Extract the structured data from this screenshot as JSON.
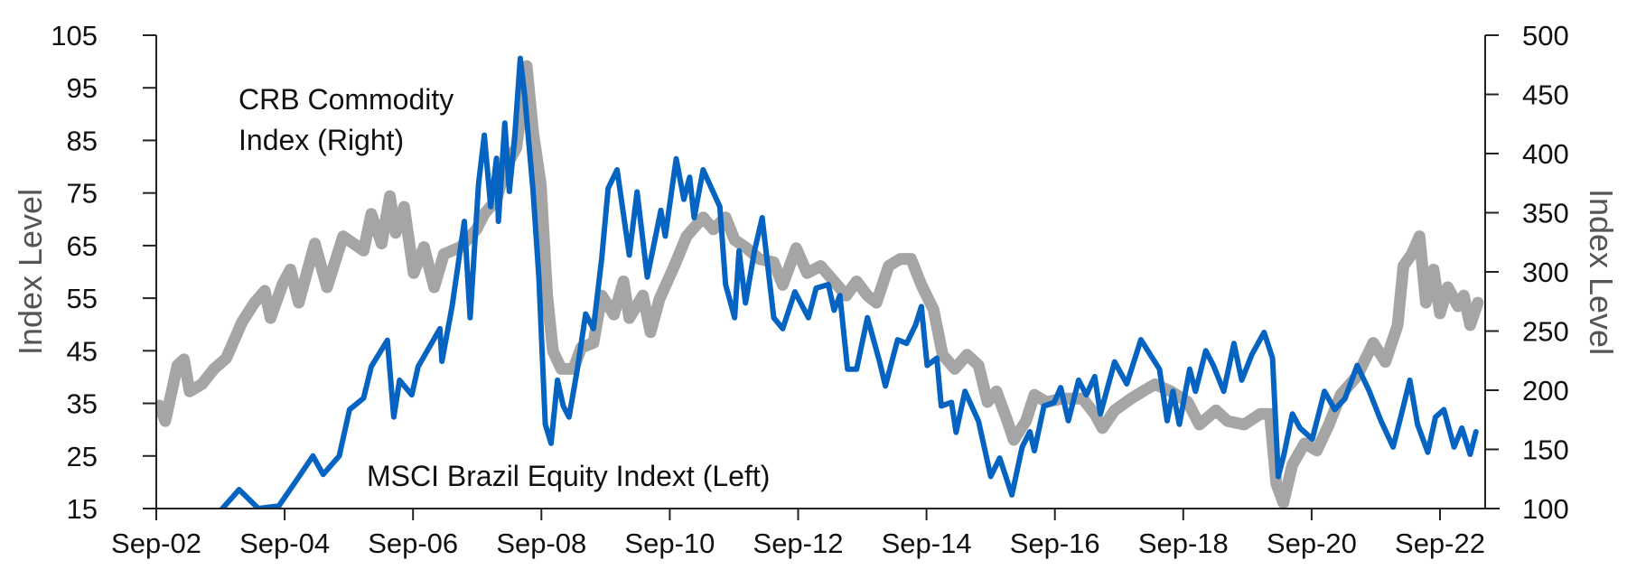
{
  "chart_data": {
    "type": "line",
    "title": "",
    "x_unit": "decimal year",
    "xlim": [
      2002.67,
      2023.6
    ],
    "x_ticks": [
      {
        "year": 2002.67,
        "label": "Sep-02"
      },
      {
        "year": 2004.67,
        "label": "Sep-04"
      },
      {
        "year": 2006.67,
        "label": "Sep-06"
      },
      {
        "year": 2008.67,
        "label": "Sep-08"
      },
      {
        "year": 2010.67,
        "label": "Sep-10"
      },
      {
        "year": 2012.67,
        "label": "Sep-12"
      },
      {
        "year": 2014.67,
        "label": "Sep-14"
      },
      {
        "year": 2016.67,
        "label": "Sep-16"
      },
      {
        "year": 2018.67,
        "label": "Sep-18"
      },
      {
        "year": 2020.67,
        "label": "Sep-20"
      },
      {
        "year": 2022.67,
        "label": "Sep-22"
      }
    ],
    "y_left": {
      "label": "Index Level",
      "ylim": [
        15,
        105
      ],
      "ticks": [
        15,
        25,
        35,
        45,
        55,
        65,
        75,
        85,
        95,
        105
      ]
    },
    "y_right": {
      "label": "Index Level",
      "ylim": [
        100,
        500
      ],
      "ticks": [
        100,
        150,
        200,
        250,
        300,
        350,
        400,
        450,
        500
      ]
    },
    "grid": false,
    "annotations": {
      "crb_line1": "CRB Commodity",
      "crb_line2": "Index (Right)",
      "msci": "MSCI Brazil Equity Indext (Left)"
    },
    "series": [
      {
        "name": "CRB Commodity Index (Right)",
        "axis": "right",
        "color": "#A5A5A5",
        "points": [
          [
            2002.72,
            187
          ],
          [
            2002.81,
            174
          ],
          [
            2003.0,
            221
          ],
          [
            2003.1,
            226
          ],
          [
            2003.19,
            199
          ],
          [
            2003.38,
            205
          ],
          [
            2003.57,
            218
          ],
          [
            2003.76,
            227
          ],
          [
            2004.01,
            258
          ],
          [
            2004.2,
            274
          ],
          [
            2004.36,
            284
          ],
          [
            2004.45,
            261
          ],
          [
            2004.64,
            290
          ],
          [
            2004.76,
            302
          ],
          [
            2004.89,
            274
          ],
          [
            2005.14,
            324
          ],
          [
            2005.33,
            287
          ],
          [
            2005.58,
            330
          ],
          [
            2005.9,
            318
          ],
          [
            2006.02,
            349
          ],
          [
            2006.18,
            324
          ],
          [
            2006.31,
            364
          ],
          [
            2006.4,
            333
          ],
          [
            2006.53,
            355
          ],
          [
            2006.68,
            299
          ],
          [
            2006.84,
            321
          ],
          [
            2007.0,
            287
          ],
          [
            2007.15,
            315
          ],
          [
            2007.41,
            321
          ],
          [
            2007.66,
            336
          ],
          [
            2007.78,
            349
          ],
          [
            2007.97,
            361
          ],
          [
            2008.1,
            387
          ],
          [
            2008.28,
            405
          ],
          [
            2008.44,
            474
          ],
          [
            2008.54,
            418
          ],
          [
            2008.66,
            374
          ],
          [
            2008.76,
            280
          ],
          [
            2008.85,
            233
          ],
          [
            2008.98,
            218
          ],
          [
            2009.17,
            218
          ],
          [
            2009.29,
            236
          ],
          [
            2009.48,
            240
          ],
          [
            2009.61,
            280
          ],
          [
            2009.8,
            264
          ],
          [
            2009.95,
            292
          ],
          [
            2010.04,
            261
          ],
          [
            2010.25,
            280
          ],
          [
            2010.37,
            249
          ],
          [
            2010.51,
            277
          ],
          [
            2010.74,
            305
          ],
          [
            2010.93,
            330
          ],
          [
            2011.19,
            346
          ],
          [
            2011.35,
            336
          ],
          [
            2011.54,
            346
          ],
          [
            2011.68,
            327
          ],
          [
            2011.87,
            320
          ],
          [
            2012.06,
            311
          ],
          [
            2012.29,
            308
          ],
          [
            2012.43,
            289
          ],
          [
            2012.64,
            320
          ],
          [
            2012.81,
            299
          ],
          [
            2013.02,
            305
          ],
          [
            2013.23,
            292
          ],
          [
            2013.42,
            280
          ],
          [
            2013.58,
            292
          ],
          [
            2013.75,
            280
          ],
          [
            2013.89,
            274
          ],
          [
            2014.08,
            305
          ],
          [
            2014.26,
            311
          ],
          [
            2014.43,
            311
          ],
          [
            2014.59,
            289
          ],
          [
            2014.78,
            268
          ],
          [
            2014.92,
            230
          ],
          [
            2015.11,
            218
          ],
          [
            2015.3,
            230
          ],
          [
            2015.48,
            221
          ],
          [
            2015.62,
            190
          ],
          [
            2015.76,
            199
          ],
          [
            2015.91,
            177
          ],
          [
            2016.03,
            158
          ],
          [
            2016.22,
            174
          ],
          [
            2016.35,
            196
          ],
          [
            2016.54,
            190
          ],
          [
            2016.79,
            193
          ],
          [
            2017.1,
            193
          ],
          [
            2017.29,
            180
          ],
          [
            2017.41,
            168
          ],
          [
            2017.6,
            183
          ],
          [
            2017.86,
            193
          ],
          [
            2018.04,
            199
          ],
          [
            2018.23,
            205
          ],
          [
            2018.48,
            199
          ],
          [
            2018.74,
            190
          ],
          [
            2018.92,
            171
          ],
          [
            2019.18,
            183
          ],
          [
            2019.36,
            174
          ],
          [
            2019.62,
            171
          ],
          [
            2019.87,
            180
          ],
          [
            2020.02,
            180
          ],
          [
            2020.12,
            121
          ],
          [
            2020.23,
            105
          ],
          [
            2020.37,
            137
          ],
          [
            2020.56,
            155
          ],
          [
            2020.75,
            149
          ],
          [
            2020.94,
            171
          ],
          [
            2021.12,
            196
          ],
          [
            2021.38,
            212
          ],
          [
            2021.63,
            240
          ],
          [
            2021.82,
            224
          ],
          [
            2022.01,
            255
          ],
          [
            2022.1,
            305
          ],
          [
            2022.23,
            315
          ],
          [
            2022.35,
            330
          ],
          [
            2022.45,
            274
          ],
          [
            2022.57,
            302
          ],
          [
            2022.67,
            265
          ],
          [
            2022.79,
            287
          ],
          [
            2022.95,
            271
          ],
          [
            2023.04,
            280
          ],
          [
            2023.14,
            255
          ],
          [
            2023.26,
            274
          ]
        ]
      },
      {
        "name": "MSCI Brazil Equity Index (Left)",
        "axis": "left",
        "color": "#0563C1",
        "points": [
          [
            2003.7,
            15
          ],
          [
            2003.96,
            18.6
          ],
          [
            2004.26,
            15
          ],
          [
            2004.58,
            15.5
          ],
          [
            2004.89,
            21
          ],
          [
            2005.11,
            25
          ],
          [
            2005.27,
            21.5
          ],
          [
            2005.52,
            25
          ],
          [
            2005.68,
            33.8
          ],
          [
            2005.9,
            36
          ],
          [
            2006.02,
            42
          ],
          [
            2006.27,
            47
          ],
          [
            2006.37,
            32.4
          ],
          [
            2006.46,
            39.4
          ],
          [
            2006.65,
            36.6
          ],
          [
            2006.75,
            42
          ],
          [
            2007.09,
            49.2
          ],
          [
            2007.12,
            43
          ],
          [
            2007.28,
            53.5
          ],
          [
            2007.47,
            69.6
          ],
          [
            2007.56,
            51.3
          ],
          [
            2007.69,
            76.7
          ],
          [
            2007.78,
            86
          ],
          [
            2007.88,
            72.4
          ],
          [
            2007.97,
            81.6
          ],
          [
            2008.0,
            69.6
          ],
          [
            2008.1,
            88.3
          ],
          [
            2008.17,
            75.3
          ],
          [
            2008.25,
            85
          ],
          [
            2008.34,
            100.6
          ],
          [
            2008.41,
            93.5
          ],
          [
            2008.54,
            75.3
          ],
          [
            2008.63,
            59
          ],
          [
            2008.73,
            31
          ],
          [
            2008.82,
            27.4
          ],
          [
            2008.92,
            39.4
          ],
          [
            2009.01,
            34.5
          ],
          [
            2009.1,
            32.4
          ],
          [
            2009.23,
            41.5
          ],
          [
            2009.36,
            52
          ],
          [
            2009.48,
            49.2
          ],
          [
            2009.61,
            62.6
          ],
          [
            2009.71,
            75.9
          ],
          [
            2009.85,
            79.4
          ],
          [
            2010.04,
            63.2
          ],
          [
            2010.16,
            75.2
          ],
          [
            2010.32,
            59
          ],
          [
            2010.53,
            71.7
          ],
          [
            2010.6,
            66.8
          ],
          [
            2010.77,
            81.5
          ],
          [
            2010.89,
            73.8
          ],
          [
            2010.98,
            78
          ],
          [
            2011.05,
            70.3
          ],
          [
            2011.19,
            79.4
          ],
          [
            2011.45,
            72.4
          ],
          [
            2011.54,
            57.6
          ],
          [
            2011.68,
            51.3
          ],
          [
            2011.75,
            64
          ],
          [
            2011.85,
            54.1
          ],
          [
            2011.99,
            64
          ],
          [
            2012.11,
            70.3
          ],
          [
            2012.29,
            51.3
          ],
          [
            2012.43,
            49.2
          ],
          [
            2012.62,
            56.2
          ],
          [
            2012.83,
            51.3
          ],
          [
            2012.95,
            56.9
          ],
          [
            2013.14,
            57.6
          ],
          [
            2013.23,
            52.7
          ],
          [
            2013.32,
            55.5
          ],
          [
            2013.44,
            41.5
          ],
          [
            2013.58,
            41.5
          ],
          [
            2013.75,
            51.3
          ],
          [
            2013.94,
            42.9
          ],
          [
            2014.03,
            38.3
          ],
          [
            2014.22,
            47.1
          ],
          [
            2014.36,
            46.4
          ],
          [
            2014.5,
            49.9
          ],
          [
            2014.59,
            53.4
          ],
          [
            2014.68,
            42.2
          ],
          [
            2014.83,
            43.6
          ],
          [
            2014.9,
            34.5
          ],
          [
            2015.06,
            35.2
          ],
          [
            2015.13,
            29.5
          ],
          [
            2015.27,
            37.3
          ],
          [
            2015.48,
            31.6
          ],
          [
            2015.67,
            21.1
          ],
          [
            2015.81,
            24.6
          ],
          [
            2016.0,
            17.6
          ],
          [
            2016.16,
            26.7
          ],
          [
            2016.28,
            29.6
          ],
          [
            2016.35,
            26
          ],
          [
            2016.5,
            34.5
          ],
          [
            2016.66,
            35.2
          ],
          [
            2016.76,
            38
          ],
          [
            2016.88,
            31.7
          ],
          [
            2017.04,
            39.4
          ],
          [
            2017.16,
            36.6
          ],
          [
            2017.29,
            40.1
          ],
          [
            2017.38,
            33
          ],
          [
            2017.6,
            42.9
          ],
          [
            2017.79,
            38.7
          ],
          [
            2018.01,
            47.1
          ],
          [
            2018.3,
            41.5
          ],
          [
            2018.42,
            31.7
          ],
          [
            2018.51,
            37.3
          ],
          [
            2018.61,
            31
          ],
          [
            2018.77,
            41.5
          ],
          [
            2018.86,
            37.3
          ],
          [
            2019.02,
            45
          ],
          [
            2019.14,
            42.2
          ],
          [
            2019.3,
            37.3
          ],
          [
            2019.46,
            46.4
          ],
          [
            2019.58,
            39.4
          ],
          [
            2019.74,
            44.3
          ],
          [
            2019.93,
            48.5
          ],
          [
            2020.06,
            43.6
          ],
          [
            2020.15,
            21.1
          ],
          [
            2020.24,
            25.3
          ],
          [
            2020.37,
            33
          ],
          [
            2020.49,
            30.3
          ],
          [
            2020.68,
            28.2
          ],
          [
            2020.87,
            37.3
          ],
          [
            2021.03,
            33.8
          ],
          [
            2021.19,
            35.9
          ],
          [
            2021.38,
            42.2
          ],
          [
            2021.57,
            37.3
          ],
          [
            2021.75,
            31.7
          ],
          [
            2021.94,
            26.7
          ],
          [
            2022.07,
            33
          ],
          [
            2022.2,
            39.4
          ],
          [
            2022.32,
            31
          ],
          [
            2022.48,
            25.7
          ],
          [
            2022.6,
            32.4
          ],
          [
            2022.73,
            33.8
          ],
          [
            2022.89,
            26.7
          ],
          [
            2023.01,
            30.3
          ],
          [
            2023.14,
            25.3
          ],
          [
            2023.23,
            29.6
          ]
        ]
      }
    ]
  }
}
